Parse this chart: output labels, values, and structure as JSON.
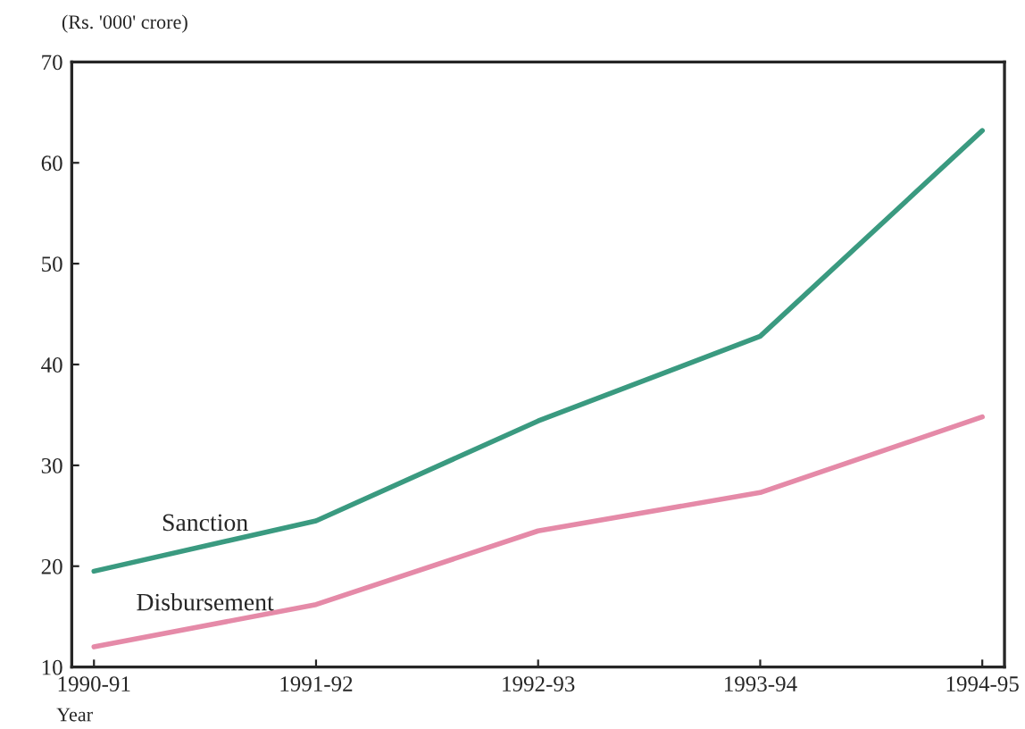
{
  "chart_data": {
    "type": "line",
    "ylabel": "(Rs. '000' crore)",
    "xlabel": "Year",
    "categories": [
      "1990-91",
      "1991-92",
      "1992-93",
      "1993-94",
      "1994-95"
    ],
    "series": [
      {
        "name": "Sanction",
        "color": "#3a9a80",
        "values": [
          19.5,
          24.5,
          34.4,
          42.8,
          63.2
        ]
      },
      {
        "name": "Disbursement",
        "color": "#e58aa8",
        "values": [
          12.0,
          16.2,
          23.5,
          27.3,
          34.8
        ]
      }
    ],
    "ylim": [
      10,
      70
    ],
    "yticks": [
      10,
      20,
      30,
      40,
      50,
      60,
      70
    ],
    "grid": false,
    "legend": false,
    "marker": "none",
    "line_style": "solid"
  }
}
